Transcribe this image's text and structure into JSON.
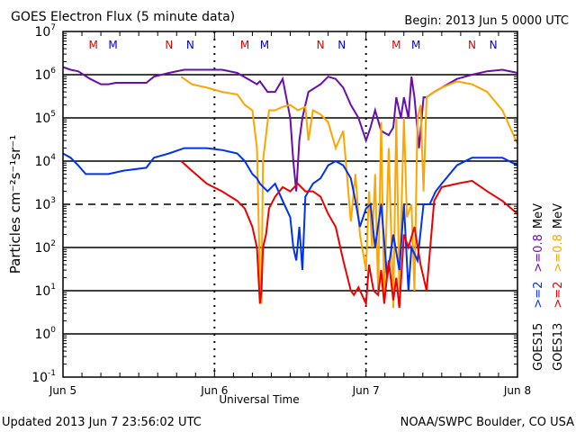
{
  "chart_data": {
    "type": "line",
    "title": "GOES Electron Flux (5 minute data)",
    "begin_label": "Begin: 2013 Jun 5 0000 UTC",
    "xlabel": "Universal Time",
    "ylabel": "Particles cm⁻²s⁻¹sr⁻¹",
    "yscale": "log",
    "ylim": [
      0.1,
      10000000
    ],
    "xlim_days": [
      0,
      3
    ],
    "x_ticks": [
      "Jun 5",
      "Jun 6",
      "Jun 7",
      "Jun 8"
    ],
    "y_ticks": [
      {
        "base": "10",
        "exp": "7"
      },
      {
        "base": "10",
        "exp": "6"
      },
      {
        "base": "10",
        "exp": "5"
      },
      {
        "base": "10",
        "exp": "4"
      },
      {
        "base": "10",
        "exp": "3"
      },
      {
        "base": "10",
        "exp": "2"
      },
      {
        "base": "10",
        "exp": "1"
      },
      {
        "base": "10",
        "exp": "0"
      },
      {
        "base": "10",
        "exp": "-1"
      }
    ],
    "threshold_line": 1000,
    "grid": "horizontal decades",
    "markers": [
      {
        "label": "M",
        "color": "#e00000",
        "day": 0.2
      },
      {
        "label": "M",
        "color": "#0000e0",
        "day": 0.33
      },
      {
        "label": "N",
        "color": "#e00000",
        "day": 0.7
      },
      {
        "label": "N",
        "color": "#0000e0",
        "day": 0.84
      },
      {
        "label": "M",
        "color": "#e00000",
        "day": 1.2
      },
      {
        "label": "M",
        "color": "#0000e0",
        "day": 1.33
      },
      {
        "label": "N",
        "color": "#e00000",
        "day": 1.7
      },
      {
        "label": "N",
        "color": "#0000e0",
        "day": 1.84
      },
      {
        "label": "M",
        "color": "#e00000",
        "day": 2.2
      },
      {
        "label": "M",
        "color": "#0000e0",
        "day": 2.33
      },
      {
        "label": "N",
        "color": "#e00000",
        "day": 2.7
      },
      {
        "label": "N",
        "color": "#0000e0",
        "day": 2.84
      }
    ],
    "legend": [
      {
        "sat": "GOES15",
        "items": [
          {
            "text": ">=2",
            "color": "#0033ee"
          },
          {
            "text": ">=0.8",
            "color": "#6a0dad"
          }
        ],
        "unit": "MeV"
      },
      {
        "sat": "GOES13",
        "items": [
          {
            "text": ">=2",
            "color": "#ee0000"
          },
          {
            "text": ">=0.8",
            "color": "#ffa500"
          }
        ],
        "unit": "MeV"
      }
    ],
    "series": [
      {
        "name": "GOES15 >=0.8 MeV",
        "color": "#6a0dad",
        "x": [
          0,
          0.05,
          0.1,
          0.18,
          0.25,
          0.3,
          0.35,
          0.45,
          0.55,
          0.6,
          0.7,
          0.8,
          0.95,
          1.05,
          1.15,
          1.22,
          1.28,
          1.3,
          1.35,
          1.4,
          1.45,
          1.5,
          1.52,
          1.54,
          1.56,
          1.58,
          1.6,
          1.62,
          1.7,
          1.75,
          1.8,
          1.85,
          1.9,
          1.95,
          2.0,
          2.03,
          2.06,
          2.1,
          2.15,
          2.18,
          2.2,
          2.23,
          2.25,
          2.28,
          2.3,
          2.32,
          2.35,
          2.38,
          2.4,
          2.45,
          2.5,
          2.6,
          2.7,
          2.8,
          2.9,
          3.0
        ],
        "y": [
          1500000.0,
          1300000.0,
          1200000.0,
          800000.0,
          600000.0,
          600000.0,
          650000.0,
          650000.0,
          650000.0,
          900000.0,
          1100000.0,
          1300000.0,
          1300000.0,
          1300000.0,
          1100000.0,
          800000.0,
          600000.0,
          700000.0,
          400000.0,
          400000.0,
          800000.0,
          100000.0,
          10000.0,
          2000.0,
          30000.0,
          100000.0,
          200000.0,
          400000.0,
          600000.0,
          900000.0,
          800000.0,
          500000.0,
          200000.0,
          100000.0,
          30000.0,
          60000.0,
          150000.0,
          50000.0,
          40000.0,
          60000.0,
          300000.0,
          100000.0,
          300000.0,
          100000.0,
          900000.0,
          300000.0,
          20000.0,
          300000.0,
          300000.0,
          400000.0,
          500000.0,
          800000.0,
          1000000.0,
          1200000.0,
          1300000.0,
          1100000.0
        ]
      },
      {
        "name": "GOES13 >=0.8 MeV",
        "color": "#ffa500",
        "x": [
          0.78,
          0.85,
          0.95,
          1.05,
          1.15,
          1.2,
          1.25,
          1.28,
          1.3,
          1.31,
          1.32,
          1.34,
          1.36,
          1.4,
          1.45,
          1.5,
          1.55,
          1.6,
          1.62,
          1.65,
          1.7,
          1.75,
          1.8,
          1.85,
          1.9,
          1.93,
          1.96,
          2.0,
          2.02,
          2.04,
          2.06,
          2.08,
          2.1,
          2.12,
          2.15,
          2.18,
          2.2,
          2.22,
          2.25,
          2.27,
          2.3,
          2.32,
          2.34,
          2.36,
          2.38,
          2.4,
          2.45,
          2.5,
          2.6,
          2.7,
          2.8,
          2.9,
          3.0
        ],
        "y": [
          900000.0,
          600000.0,
          500000.0,
          400000.0,
          350000.0,
          200000.0,
          150000.0,
          20000.0,
          20.0,
          5,
          10000.0,
          40000.0,
          150000.0,
          150000.0,
          180000.0,
          200000.0,
          150000.0,
          180000.0,
          30000.0,
          150000.0,
          120000.0,
          80000.0,
          20000.0,
          50000.0,
          400.0,
          5000.0,
          200.0,
          30.0,
          2000.0,
          100.0,
          5000.0,
          10.0,
          80000.0,
          6,
          20000.0,
          4,
          100000.0,
          10.0,
          100000.0,
          500.0,
          1000.0,
          10.0,
          100000.0,
          200000.0,
          2000.0,
          300000.0,
          400000.0,
          500000.0,
          700000.0,
          600000.0,
          400000.0,
          150000.0,
          25000.0
        ]
      },
      {
        "name": "GOES15 >=2 MeV",
        "color": "#0033ee",
        "x": [
          0,
          0.05,
          0.1,
          0.15,
          0.2,
          0.3,
          0.4,
          0.55,
          0.6,
          0.7,
          0.8,
          0.95,
          1.05,
          1.15,
          1.2,
          1.25,
          1.28,
          1.3,
          1.35,
          1.4,
          1.45,
          1.5,
          1.52,
          1.54,
          1.56,
          1.58,
          1.6,
          1.65,
          1.7,
          1.75,
          1.8,
          1.85,
          1.9,
          1.93,
          1.96,
          2.0,
          2.03,
          2.06,
          2.1,
          2.14,
          2.18,
          2.22,
          2.25,
          2.28,
          2.3,
          2.34,
          2.38,
          2.42,
          2.46,
          2.5,
          2.6,
          2.7,
          2.8,
          2.9,
          3.0
        ],
        "y": [
          15000.0,
          12000.0,
          8000.0,
          5000.0,
          5000.0,
          5000.0,
          6000.0,
          7000.0,
          12000.0,
          15000.0,
          20000.0,
          20000.0,
          18000.0,
          15000.0,
          10000.0,
          5000.0,
          4000.0,
          3000.0,
          2000.0,
          3000.0,
          1200.0,
          500,
          100,
          50,
          300,
          30,
          1500.0,
          3000.0,
          4000.0,
          8000.0,
          10000.0,
          8000.0,
          4000.0,
          1200.0,
          300,
          800,
          1000.0,
          100,
          1000.0,
          20,
          200,
          30,
          1000.0,
          10,
          100,
          50,
          1000.0,
          1000.0,
          2000.0,
          3000.0,
          8000.0,
          12000.0,
          12000.0,
          12000.0,
          8000.0
        ]
      },
      {
        "name": "GOES13 >=2 MeV",
        "color": "#ee0000",
        "x": [
          0.78,
          0.85,
          0.95,
          1.05,
          1.15,
          1.2,
          1.25,
          1.28,
          1.3,
          1.31,
          1.32,
          1.34,
          1.36,
          1.4,
          1.45,
          1.5,
          1.55,
          1.6,
          1.65,
          1.7,
          1.75,
          1.8,
          1.85,
          1.9,
          1.92,
          1.95,
          2.0,
          2.02,
          2.05,
          2.08,
          2.1,
          2.12,
          2.15,
          2.18,
          2.2,
          2.22,
          2.25,
          2.28,
          2.32,
          2.36,
          2.4,
          2.45,
          2.5,
          2.6,
          2.7,
          2.8,
          2.9,
          3.0
        ],
        "y": [
          10000.0,
          6000.0,
          3000.0,
          2000.0,
          1200.0,
          800,
          300,
          100,
          5,
          10,
          100,
          200,
          800,
          1500.0,
          2500.0,
          2000.0,
          3000.0,
          2000.0,
          2000.0,
          1500.0,
          600,
          300,
          50,
          10,
          8,
          12,
          5,
          40,
          10,
          8,
          30,
          5,
          50,
          6,
          20,
          4,
          200.0,
          100.0,
          300.0,
          40,
          10,
          1200.0,
          2500.0,
          3000.0,
          3500.0,
          2000.0,
          1200.0,
          600
        ]
      }
    ]
  },
  "footer": {
    "updated": "Updated 2013 Jun  7 23:56:02 UTC",
    "credit": "NOAA/SWPC Boulder, CO USA"
  }
}
